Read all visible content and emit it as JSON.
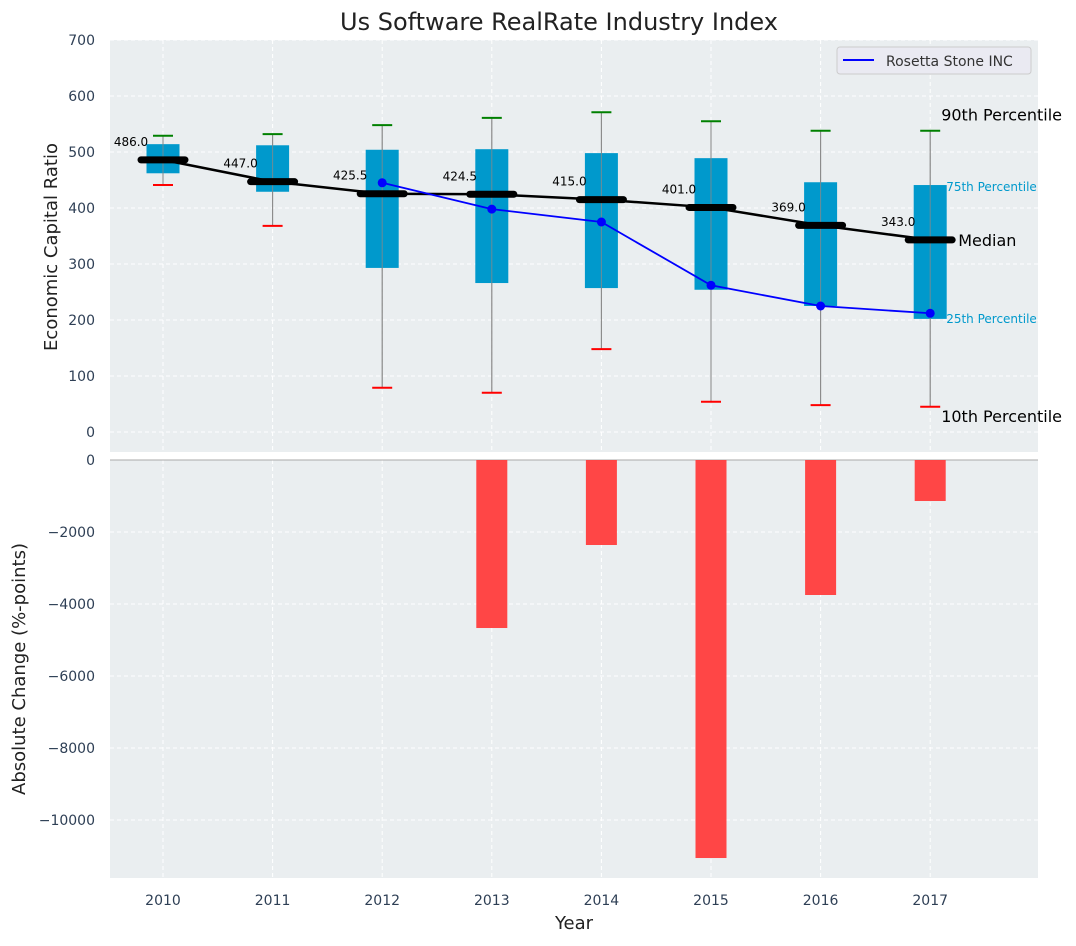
{
  "chart_data": [
    {
      "type": "box",
      "title": "Us Software RealRate Industry Index",
      "xlabel": "",
      "ylabel": "Economic Capital Ratio",
      "ylim": [
        0,
        700
      ],
      "yticks": [
        0,
        100,
        200,
        300,
        400,
        500,
        600,
        700
      ],
      "grid": true,
      "legend": {
        "position": "top-right",
        "entries": [
          "Rosetta Stone INC"
        ]
      },
      "categories": [
        "2010",
        "2011",
        "2012",
        "2013",
        "2014",
        "2015",
        "2016",
        "2017"
      ],
      "p10": [
        441,
        368,
        79,
        70,
        148,
        54,
        48,
        45
      ],
      "p25": [
        462,
        429,
        293,
        266,
        257,
        254,
        225,
        202
      ],
      "median": [
        486.0,
        447.0,
        425.5,
        424.5,
        415.0,
        401.0,
        369.0,
        343.0
      ],
      "median_labels": [
        "486.0",
        "447.0",
        "425.5",
        "424.5",
        "415.0",
        "401.0",
        "369.0",
        "343.0"
      ],
      "p75": [
        514,
        512,
        504,
        505,
        498,
        489,
        446,
        441
      ],
      "p90": [
        529,
        532,
        548,
        561,
        571,
        555,
        538,
        538
      ],
      "series": [
        {
          "name": "Rosetta Stone INC",
          "color": "#0000ff",
          "values": [
            null,
            null,
            445,
            398,
            375,
            262,
            225,
            212
          ]
        }
      ],
      "annotations": [
        "90th Percentile",
        "75th Percentile",
        "Median",
        "25th Percentile",
        "10th Percentile"
      ],
      "colors": {
        "box": "#0099cc",
        "median": "#000000",
        "p90": "#008000",
        "p10": "#ff0000",
        "background": "#eaeef0"
      }
    },
    {
      "type": "bar",
      "xlabel": "Year",
      "ylabel": "Absolute Change (%-points)",
      "ylim": [
        -11600,
        0
      ],
      "yticks": [
        0,
        -2000,
        -4000,
        -6000,
        -8000,
        -10000
      ],
      "ytick_labels": [
        "0",
        "−2000",
        "−4000",
        "−6000",
        "−8000",
        "−10000"
      ],
      "categories": [
        "2010",
        "2011",
        "2012",
        "2013",
        "2014",
        "2015",
        "2016",
        "2017"
      ],
      "values": [
        0,
        0,
        0,
        -4667,
        -2361,
        -11056,
        -3750,
        -1139
      ],
      "color": "#ff4040"
    }
  ]
}
